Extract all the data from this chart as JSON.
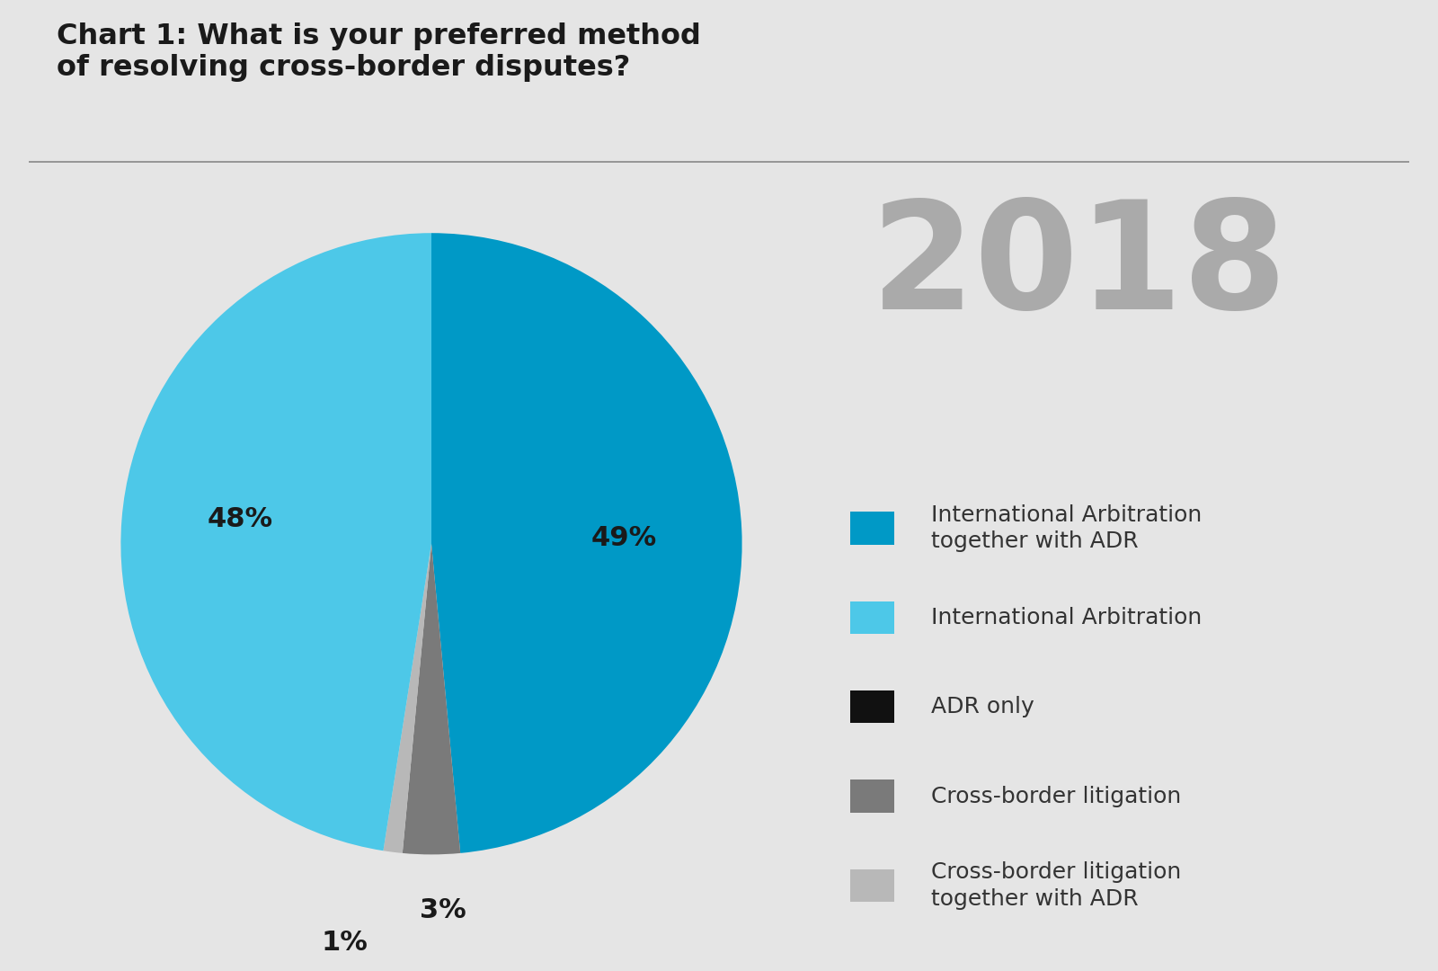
{
  "title_line1": "Chart 1: What is your preferred method",
  "title_line2": "of resolving cross-border disputes?",
  "year": "2018",
  "pie_values": [
    49,
    3,
    1,
    48,
    0
  ],
  "pie_colors": [
    "#0099c6",
    "#7a7a7a",
    "#b8b8b8",
    "#4dc8e8",
    "#111111"
  ],
  "legend_labels": [
    "International Arbitration\ntogether with ADR",
    "International Arbitration",
    "ADR only",
    "Cross-border litigation",
    "Cross-border litigation\ntogether with ADR"
  ],
  "legend_colors": [
    "#0099c6",
    "#4dc8e8",
    "#111111",
    "#7a7a7a",
    "#b8b8b8"
  ],
  "background_color": "#e5e5e5",
  "title_fontsize": 23,
  "year_fontsize": 120,
  "year_color": "#aaaaaa",
  "label_fontsize": 22,
  "legend_fontsize": 18
}
